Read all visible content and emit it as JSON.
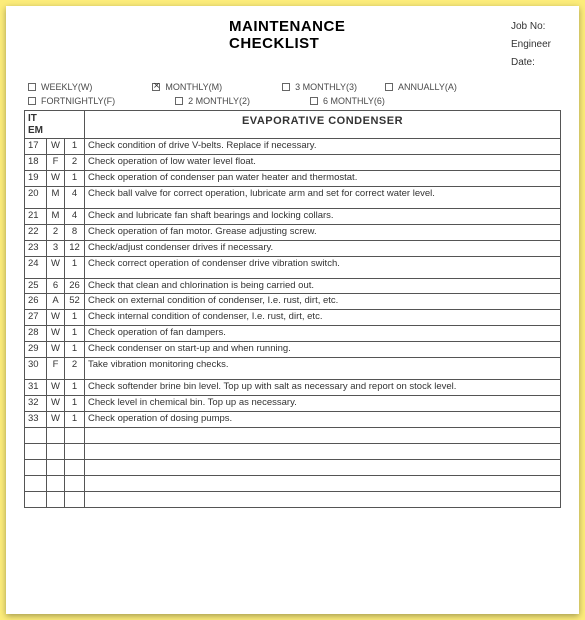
{
  "title": {
    "line1": "MAINTENANCE",
    "line2": "CHECKLIST"
  },
  "meta": {
    "jobno_label": "Job No:",
    "engineer_label": "Engineer",
    "date_label": "Date:"
  },
  "freq_row1": [
    {
      "label": "WEEKLY(W)",
      "checked": false
    },
    {
      "label": "MONTHLY(M)",
      "checked": true
    },
    {
      "label": "3 MONTHLY(3)",
      "checked": false
    },
    {
      "label": "ANNUALLY(A)",
      "checked": false
    }
  ],
  "freq_row2": [
    {
      "label": "FORTNIGHTLY(F)",
      "checked": false
    },
    {
      "label": "2 MONTHLY(2)",
      "checked": false
    },
    {
      "label": "6 MONTHLY(6)",
      "checked": false
    }
  ],
  "table": {
    "header_item": "ITEM",
    "section_title": "EVAPORATIVE CONDENSER",
    "rows": [
      {
        "n": "17",
        "a": "W",
        "b": "1",
        "txt": "Check condition of drive V-belts.  Replace if necessary."
      },
      {
        "n": "18",
        "a": "F",
        "b": "2",
        "txt": "Check operation of low water level float."
      },
      {
        "n": "19",
        "a": "W",
        "b": "1",
        "txt": "Check operation of condenser pan water heater and thermostat."
      },
      {
        "n": "20",
        "a": "M",
        "b": "4",
        "txt": "Check ball valve for correct operation, lubricate arm and set for correct water level.",
        "tall": true
      },
      {
        "n": "21",
        "a": "M",
        "b": "4",
        "txt": "Check and lubricate fan shaft bearings and locking collars."
      },
      {
        "n": "22",
        "a": "2",
        "b": "8",
        "txt": "Check operation of fan motor.  Grease adjusting screw."
      },
      {
        "n": "23",
        "a": "3",
        "b": "12",
        "txt": "Check/adjust condenser drives if necessary."
      },
      {
        "n": "24",
        "a": "W",
        "b": "1",
        "txt": "Check correct operation of condenser drive vibration switch.",
        "tall": true
      },
      {
        "n": "25",
        "a": "6",
        "b": "26",
        "txt": "Check that clean and chlorination is being carried out."
      },
      {
        "n": "26",
        "a": "A",
        "b": "52",
        "txt": "Check on external condition of condenser, I.e. rust, dirt, etc."
      },
      {
        "n": "27",
        "a": "W",
        "b": "1",
        "txt": "Check internal condition of condenser, I.e. rust, dirt, etc."
      },
      {
        "n": "28",
        "a": "W",
        "b": "1",
        "txt": "Check operation of fan dampers."
      },
      {
        "n": "29",
        "a": "W",
        "b": "1",
        "txt": "Check condenser on start-up and when running."
      },
      {
        "n": "30",
        "a": "F",
        "b": "2",
        "txt": "Take vibration monitoring checks.",
        "tall": true
      },
      {
        "n": "31",
        "a": "W",
        "b": "1",
        "txt": "Check softender brine bin level.  Top up with salt as necessary and report on stock level."
      },
      {
        "n": "32",
        "a": "W",
        "b": "1",
        "txt": "Check level in chemical bin.  Top up as necessary."
      },
      {
        "n": "33",
        "a": "W",
        "b": "1",
        "txt": "Check operation of dosing pumps."
      }
    ],
    "blank_rows": 5
  },
  "colors": {
    "page_bg": "#fcec7a",
    "sheet_bg": "#ffffff",
    "border": "#555555",
    "text": "#333333"
  }
}
